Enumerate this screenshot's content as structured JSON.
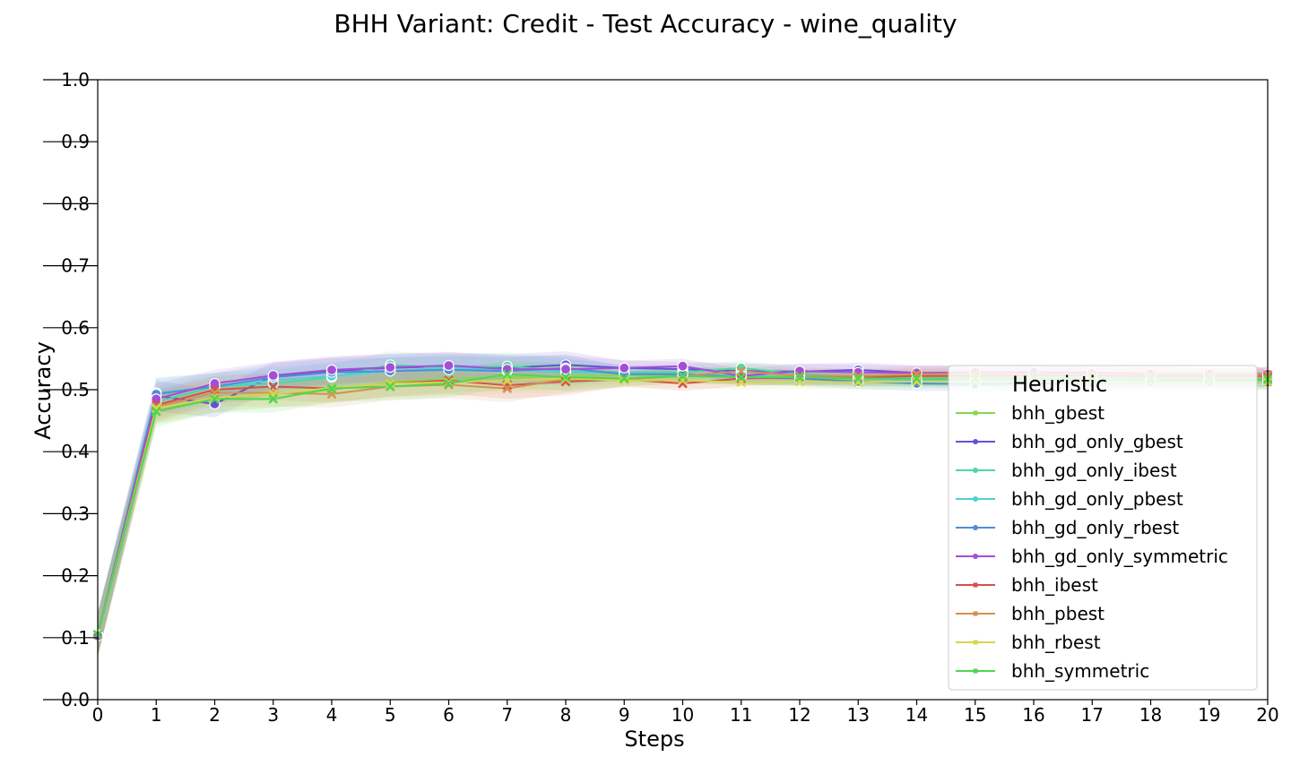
{
  "chart_data": {
    "type": "line",
    "title": "BHH Variant: Credit - Test Accuracy - wine_quality",
    "xlabel": "Steps",
    "ylabel": "Accuracy",
    "xlim": [
      0,
      20
    ],
    "ylim": [
      0.0,
      1.0
    ],
    "x": [
      0,
      1,
      2,
      3,
      4,
      5,
      6,
      7,
      8,
      9,
      10,
      11,
      12,
      13,
      14,
      15,
      16,
      17,
      18,
      19,
      20
    ],
    "x_ticks": [
      "0",
      "1",
      "2",
      "3",
      "4",
      "5",
      "6",
      "7",
      "8",
      "9",
      "10",
      "11",
      "12",
      "13",
      "14",
      "15",
      "16",
      "17",
      "18",
      "19",
      "20"
    ],
    "y_ticks": [
      "0.0",
      "0.1",
      "0.2",
      "0.3",
      "0.4",
      "0.5",
      "0.6",
      "0.7",
      "0.8",
      "0.9",
      "1.0"
    ],
    "grid": false,
    "legend": {
      "title": "Heuristic",
      "placement": "right"
    },
    "series": [
      {
        "name": "bhh_gbest",
        "color": "#8ad64f",
        "marker": "x",
        "values": [
          0.105,
          0.47,
          0.485,
          0.493,
          0.5,
          0.512,
          0.518,
          0.52,
          0.522,
          0.523,
          0.522,
          0.52,
          0.518,
          0.516,
          0.518,
          0.517,
          0.518,
          0.518,
          0.517,
          0.517,
          0.517
        ]
      },
      {
        "name": "bhh_gd_only_gbest",
        "color": "#6a4fd6",
        "marker": "o",
        "values": [
          0.105,
          0.49,
          0.477,
          0.522,
          0.53,
          0.535,
          0.538,
          0.535,
          0.54,
          0.535,
          0.533,
          0.53,
          0.529,
          0.532,
          0.527,
          0.527,
          0.528,
          0.527,
          0.525,
          0.523,
          0.523
        ]
      },
      {
        "name": "bhh_gd_only_ibest",
        "color": "#4fd6a3",
        "marker": "o",
        "values": [
          0.105,
          0.48,
          0.505,
          0.51,
          0.52,
          0.54,
          0.535,
          0.538,
          0.53,
          0.528,
          0.528,
          0.535,
          0.525,
          0.52,
          0.518,
          0.515,
          0.517,
          0.517,
          0.516,
          0.516,
          0.516
        ]
      },
      {
        "name": "bhh_gd_only_pbest",
        "color": "#4fd0d6",
        "marker": "o",
        "values": [
          0.105,
          0.495,
          0.505,
          0.515,
          0.522,
          0.53,
          0.535,
          0.532,
          0.528,
          0.527,
          0.525,
          0.523,
          0.52,
          0.518,
          0.515,
          0.515,
          0.516,
          0.515,
          0.515,
          0.515,
          0.515
        ]
      },
      {
        "name": "bhh_gd_only_rbest",
        "color": "#4f8ed6",
        "marker": "o",
        "values": [
          0.105,
          0.493,
          0.505,
          0.52,
          0.528,
          0.53,
          0.532,
          0.53,
          0.535,
          0.525,
          0.525,
          0.52,
          0.518,
          0.513,
          0.51,
          0.509,
          0.51,
          0.511,
          0.512,
          0.512,
          0.512
        ]
      },
      {
        "name": "bhh_gd_only_symmetric",
        "color": "#a34fd6",
        "marker": "o",
        "values": [
          0.103,
          0.485,
          0.51,
          0.523,
          0.532,
          0.536,
          0.539,
          0.533,
          0.533,
          0.535,
          0.538,
          0.522,
          0.53,
          0.528,
          0.527,
          0.528,
          0.528,
          0.526,
          0.525,
          0.525,
          0.525
        ]
      },
      {
        "name": "bhh_ibest",
        "color": "#d6504f",
        "marker": "x",
        "values": [
          0.105,
          0.475,
          0.5,
          0.505,
          0.502,
          0.51,
          0.515,
          0.507,
          0.513,
          0.517,
          0.51,
          0.518,
          0.52,
          0.52,
          0.522,
          0.522,
          0.523,
          0.523,
          0.522,
          0.522,
          0.522
        ]
      },
      {
        "name": "bhh_pbest",
        "color": "#d6914f",
        "marker": "x",
        "values": [
          0.105,
          0.472,
          0.495,
          0.495,
          0.493,
          0.505,
          0.508,
          0.502,
          0.517,
          0.517,
          0.522,
          0.53,
          0.522,
          0.522,
          0.525,
          0.526,
          0.525,
          0.525,
          0.524,
          0.524,
          0.524
        ]
      },
      {
        "name": "bhh_rbest",
        "color": "#d6d64f",
        "marker": "x",
        "values": [
          0.105,
          0.47,
          0.487,
          0.493,
          0.503,
          0.51,
          0.512,
          0.515,
          0.518,
          0.515,
          0.515,
          0.512,
          0.513,
          0.512,
          0.513,
          0.513,
          0.513,
          0.512,
          0.512,
          0.512,
          0.512
        ]
      },
      {
        "name": "bhh_symmetric",
        "color": "#4fd652",
        "marker": "x",
        "values": [
          0.105,
          0.465,
          0.485,
          0.485,
          0.502,
          0.505,
          0.51,
          0.525,
          0.52,
          0.518,
          0.522,
          0.52,
          0.52,
          0.518,
          0.518,
          0.518,
          0.518,
          0.518,
          0.517,
          0.517,
          0.517
        ]
      }
    ]
  }
}
